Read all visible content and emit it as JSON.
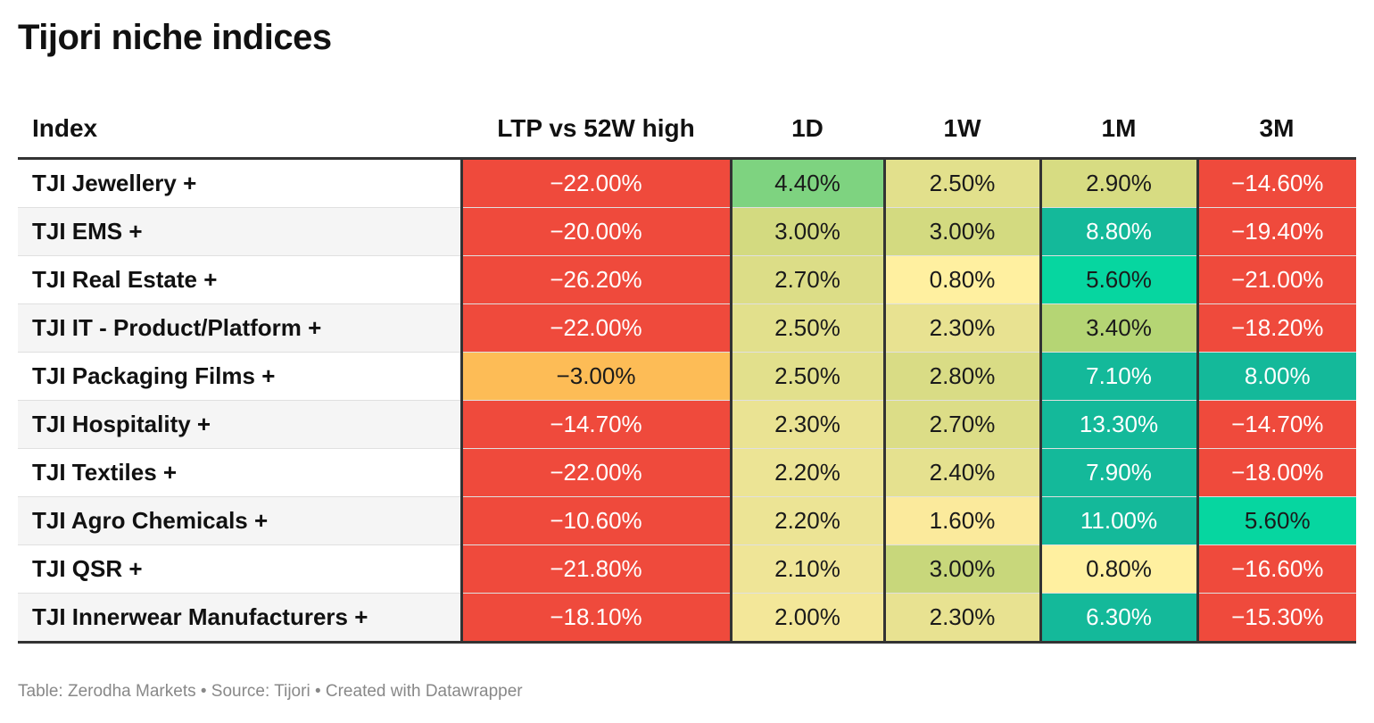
{
  "title": "Tijori niche indices",
  "footer": "Table: Zerodha Markets • Source: Tijori • Created with Datawrapper",
  "chart_data": {
    "type": "table",
    "title": "Tijori niche indices",
    "columns": [
      "Index",
      "LTP vs 52W high",
      "1D",
      "1W",
      "1M",
      "3M"
    ],
    "rows": [
      {
        "index": "TJI Jewellery +",
        "ltp": "−22.00%",
        "d1": "4.40%",
        "w1": "2.50%",
        "m1": "2.90%",
        "m3": "−14.60%",
        "colors": [
          "#ef4a3c",
          "#7ed380",
          "#e2e08c",
          "#d7dc82",
          "#ef4a3c"
        ]
      },
      {
        "index": "TJI EMS +",
        "ltp": "−20.00%",
        "d1": "3.00%",
        "w1": "3.00%",
        "m1": "8.80%",
        "m3": "−19.40%",
        "colors": [
          "#ef4a3c",
          "#d3da80",
          "#d3da80",
          "#14b99a",
          "#ef4a3c"
        ]
      },
      {
        "index": "TJI Real Estate +",
        "ltp": "−26.20%",
        "d1": "2.70%",
        "w1": "0.80%",
        "m1": "5.60%",
        "m3": "−21.00%",
        "colors": [
          "#ef4a3c",
          "#dcdd87",
          "#fff0a0",
          "#06d6a0",
          "#ef4a3c"
        ]
      },
      {
        "index": "TJI IT - Product/Platform +",
        "ltp": "−22.00%",
        "d1": "2.50%",
        "w1": "2.30%",
        "m1": "3.40%",
        "m3": "−18.20%",
        "colors": [
          "#ef4a3c",
          "#e2e08c",
          "#e8e291",
          "#b5d574",
          "#ef4a3c"
        ]
      },
      {
        "index": "TJI Packaging Films +",
        "ltp": "−3.00%",
        "d1": "2.50%",
        "w1": "2.80%",
        "m1": "7.10%",
        "m3": "8.00%",
        "colors": [
          "#fdbc56",
          "#e2e08c",
          "#d9dc85",
          "#14b99a",
          "#14b99a"
        ]
      },
      {
        "index": "TJI Hospitality +",
        "ltp": "−14.70%",
        "d1": "2.30%",
        "w1": "2.70%",
        "m1": "13.30%",
        "m3": "−14.70%",
        "colors": [
          "#ef4a3c",
          "#eae393",
          "#dcdd87",
          "#14b99a",
          "#ef4a3c"
        ]
      },
      {
        "index": "TJI Textiles +",
        "ltp": "−22.00%",
        "d1": "2.20%",
        "w1": "2.40%",
        "m1": "7.90%",
        "m3": "−18.00%",
        "colors": [
          "#ef4a3c",
          "#ece495",
          "#e5e18f",
          "#14b99a",
          "#ef4a3c"
        ]
      },
      {
        "index": "TJI Agro Chemicals +",
        "ltp": "−10.60%",
        "d1": "2.20%",
        "w1": "1.60%",
        "m1": "11.00%",
        "m3": "5.60%",
        "colors": [
          "#ef4a3c",
          "#ece495",
          "#fbea9c",
          "#14b99a",
          "#06d6a0"
        ]
      },
      {
        "index": "TJI QSR +",
        "ltp": "−21.80%",
        "d1": "2.10%",
        "w1": "3.00%",
        "m1": "0.80%",
        "m3": "−16.60%",
        "colors": [
          "#ef4a3c",
          "#efe597",
          "#c8d77b",
          "#fff0a0",
          "#ef4a3c"
        ]
      },
      {
        "index": "TJI Innerwear Manufacturers +",
        "ltp": "−18.10%",
        "d1": "2.00%",
        "w1": "2.30%",
        "m1": "6.30%",
        "m3": "−15.30%",
        "colors": [
          "#ef4a3c",
          "#f3e799",
          "#e8e291",
          "#14b99a",
          "#ef4a3c"
        ]
      }
    ]
  }
}
